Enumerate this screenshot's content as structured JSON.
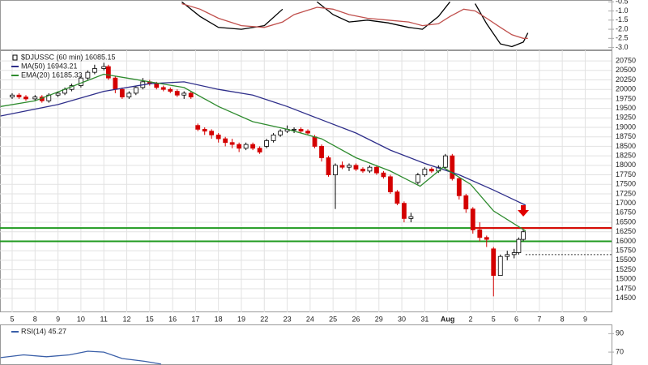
{
  "chart_data": [
    {
      "type": "line",
      "xlim": [
        -0.53,
        26.15
      ],
      "ylim": [
        -3.15,
        -0.4
      ],
      "yticks": [
        -0.5,
        {
          "value": -1,
          "label": "-1.0"
        },
        -1.5,
        {
          "value": -2,
          "label": "-2.0"
        },
        -2.5,
        {
          "value": -3,
          "label": "-3.0"
        }
      ],
      "x": [
        7.4,
        8.2,
        9.0,
        10.0,
        11.0,
        11.8,
        12.3,
        13.3,
        14.0,
        14.7,
        15.5,
        16.4,
        17.3,
        17.9,
        18.6,
        19.1,
        19.7,
        20.2,
        20.7,
        21.3,
        21.8,
        22.3,
        22.5
      ],
      "series": [
        {
          "color": "#000000",
          "values": [
            -0.5,
            -1.3,
            -1.9,
            -2.0,
            -1.8,
            -0.9,
            null,
            -0.5,
            -1.2,
            -1.6,
            -1.5,
            -1.65,
            -1.9,
            -2.0,
            -1.3,
            -0.5,
            null,
            -0.6,
            -1.7,
            -2.8,
            -2.95,
            -2.7,
            -2.2
          ]
        },
        {
          "color": "#c0504d",
          "values": [
            -0.6,
            -0.9,
            -1.4,
            -1.8,
            -1.9,
            -1.6,
            -1.2,
            -0.8,
            -0.9,
            -1.2,
            -1.4,
            -1.5,
            -1.6,
            -1.8,
            -1.7,
            -1.3,
            -0.9,
            -1.0,
            -1.4,
            -1.9,
            -2.3,
            -2.5,
            -2.5
          ]
        }
      ]
    },
    {
      "type": "candlestick",
      "xlim": [
        -0.53,
        26.15
      ],
      "ylim": [
        14130,
        21030
      ],
      "grid": true,
      "legend": "top-left",
      "yticks": [
        14500,
        14750,
        15000,
        15250,
        15500,
        15750,
        16000,
        16250,
        16500,
        16750,
        17000,
        17250,
        17500,
        17750,
        18000,
        18250,
        18500,
        18750,
        19000,
        19250,
        19500,
        19750,
        20000,
        20250,
        20500,
        20750
      ],
      "xticks": [
        {
          "value": 0,
          "label": "5"
        },
        {
          "value": 1,
          "label": "8"
        },
        {
          "value": 2,
          "label": "9"
        },
        {
          "value": 3,
          "label": "10"
        },
        {
          "value": 4,
          "label": "11"
        },
        {
          "value": 5,
          "label": "12"
        },
        {
          "value": 6,
          "label": "15"
        },
        {
          "value": 7,
          "label": "16"
        },
        {
          "value": 8,
          "label": "17"
        },
        {
          "value": 9,
          "label": "18"
        },
        {
          "value": 10,
          "label": "19"
        },
        {
          "value": 11,
          "label": "22"
        },
        {
          "value": 12,
          "label": "23"
        },
        {
          "value": 13,
          "label": "24"
        },
        {
          "value": 14,
          "label": "25"
        },
        {
          "value": 15,
          "label": "26"
        },
        {
          "value": 16,
          "label": "29"
        },
        {
          "value": 17,
          "label": "30"
        },
        {
          "value": 18,
          "label": "31"
        },
        {
          "value": 19,
          "label": "Aug"
        },
        {
          "value": 20,
          "label": "2"
        },
        {
          "value": 21,
          "label": "5"
        },
        {
          "value": 22,
          "label": "6"
        },
        {
          "value": 23,
          "label": "7"
        },
        {
          "value": 24,
          "label": "8"
        },
        {
          "value": 25,
          "label": "9"
        }
      ],
      "candles": {
        "name": "$DJUSSC (60 min) 16085.15",
        "up_color": "#000000",
        "down_color": "#d40000",
        "x": [
          0.0,
          0.3,
          0.6,
          1.0,
          1.3,
          1.6,
          2.0,
          2.3,
          2.6,
          3.0,
          3.3,
          3.6,
          4.0,
          4.2,
          4.5,
          4.8,
          5.1,
          5.4,
          5.7,
          6.0,
          6.3,
          6.6,
          6.9,
          7.2,
          7.5,
          7.8,
          8.1,
          8.4,
          8.7,
          9.0,
          9.3,
          9.6,
          9.9,
          10.2,
          10.5,
          10.8,
          11.1,
          11.4,
          11.7,
          12.0,
          12.3,
          12.6,
          12.9,
          13.2,
          13.5,
          13.8,
          14.1,
          14.4,
          14.7,
          15.0,
          15.3,
          15.6,
          15.9,
          16.2,
          16.5,
          16.8,
          17.1,
          17.4,
          17.7,
          18.0,
          18.3,
          18.6,
          18.9,
          19.2,
          19.5,
          19.8,
          20.1,
          20.4,
          20.7,
          21.0,
          21.3,
          21.6,
          21.9,
          22.1,
          22.3
        ],
        "open": [
          19800,
          19850,
          19800,
          19750,
          19800,
          19700,
          19850,
          19900,
          20000,
          20100,
          20300,
          20450,
          20550,
          20600,
          20300,
          20000,
          19800,
          19900,
          20050,
          20200,
          20150,
          20050,
          20000,
          19950,
          19850,
          19900,
          19050,
          18950,
          18900,
          18800,
          18700,
          18600,
          18550,
          18450,
          18550,
          18450,
          18500,
          18650,
          18800,
          18900,
          18950,
          18950,
          18900,
          18750,
          18500,
          18200,
          17750,
          18000,
          17950,
          18000,
          17900,
          17850,
          17950,
          17800,
          17700,
          17300,
          17000,
          16600,
          17550,
          17750,
          17900,
          17850,
          17950,
          18250,
          17650,
          17200,
          16850,
          16300,
          16100,
          15800,
          15100,
          15600,
          15650,
          15700,
          16050
        ],
        "high": [
          19900,
          19900,
          19850,
          19850,
          19850,
          19900,
          19950,
          20050,
          20150,
          20350,
          20500,
          20650,
          20700,
          20650,
          20350,
          20050,
          19950,
          20100,
          20300,
          20250,
          20200,
          20100,
          20050,
          20000,
          19950,
          19950,
          19100,
          19000,
          18950,
          18850,
          18750,
          18700,
          18600,
          18600,
          18600,
          18500,
          18700,
          18850,
          18950,
          19050,
          19000,
          19000,
          18950,
          18800,
          18550,
          18250,
          18050,
          18100,
          18050,
          18050,
          17950,
          18000,
          18000,
          17850,
          17750,
          17350,
          17050,
          16750,
          17800,
          17950,
          17950,
          18000,
          18300,
          18300,
          17700,
          17250,
          16900,
          16500,
          16150,
          15850,
          15650,
          15750,
          15800,
          16100,
          16300
        ],
        "low": [
          19750,
          19750,
          19700,
          19700,
          19650,
          19650,
          19800,
          19850,
          19950,
          20050,
          20250,
          20400,
          20500,
          20250,
          19900,
          19750,
          19750,
          19850,
          20000,
          20100,
          20000,
          19950,
          19900,
          19800,
          19750,
          19750,
          18900,
          18800,
          18700,
          18600,
          18500,
          18450,
          18350,
          18400,
          18400,
          18300,
          18450,
          18600,
          18750,
          18850,
          18850,
          18850,
          18800,
          18450,
          18100,
          17700,
          16850,
          17900,
          17850,
          17850,
          17800,
          17800,
          17750,
          17650,
          17250,
          16950,
          16500,
          16500,
          17500,
          17700,
          17800,
          17800,
          17900,
          17600,
          17100,
          16750,
          16200,
          16000,
          15850,
          14550,
          15450,
          15500,
          15550,
          15650,
          16000
        ],
        "close": [
          19850,
          19800,
          19750,
          19800,
          19700,
          19850,
          19900,
          20000,
          20100,
          20300,
          20450,
          20550,
          20600,
          20300,
          20000,
          19800,
          19900,
          20050,
          20200,
          20150,
          20050,
          20000,
          19950,
          19850,
          19900,
          19800,
          18950,
          18900,
          18800,
          18700,
          18600,
          18550,
          18450,
          18550,
          18450,
          18350,
          18650,
          18800,
          18900,
          18950,
          18950,
          18900,
          18850,
          18500,
          18200,
          17750,
          18000,
          17950,
          18000,
          17900,
          17850,
          17950,
          17800,
          17700,
          17300,
          17000,
          16600,
          16650,
          17750,
          17900,
          17850,
          17950,
          18250,
          17650,
          17200,
          16850,
          16300,
          16100,
          16050,
          15100,
          15600,
          15650,
          15700,
          16050,
          16250
        ]
      },
      "series": [
        {
          "name": "MA(50) 16943.21",
          "color": "#2e2e8a",
          "x": [
            -0.5,
            2,
            4,
            6,
            7.5,
            9,
            10.5,
            12,
            13.5,
            15,
            16.5,
            18,
            19.5,
            21,
            22.4
          ],
          "values": [
            19300,
            19600,
            19950,
            20150,
            20200,
            20000,
            19850,
            19550,
            19200,
            18850,
            18400,
            18050,
            17750,
            17350,
            16950
          ]
        },
        {
          "name": "EMA(20) 16185.33",
          "color": "#2e8b2e",
          "x": [
            -0.5,
            1,
            2.5,
            4,
            5,
            6,
            7.5,
            9,
            10.5,
            12,
            13.5,
            15,
            16.5,
            17.8,
            18.8,
            20,
            21,
            22.4
          ],
          "values": [
            19550,
            19700,
            20050,
            20400,
            20300,
            20200,
            20050,
            19550,
            19150,
            18950,
            18700,
            18200,
            17850,
            17450,
            17950,
            17500,
            16800,
            16270
          ]
        }
      ],
      "hlines": [
        {
          "value": 16350,
          "color": "#1f9a1f"
        },
        {
          "value": 16000,
          "color": "#1f9a1f"
        },
        {
          "value": 16350,
          "color": "#e00000",
          "from": 20.2
        },
        {
          "value": 15650,
          "color": "#333333",
          "from": 22.4,
          "dash": true
        }
      ],
      "arrows": [
        {
          "x": 22.3,
          "y": 16650,
          "color": "#e00000"
        }
      ]
    },
    {
      "type": "line",
      "xlim": [
        -0.53,
        26.15
      ],
      "ylim": [
        56,
        100
      ],
      "legend": "top-left",
      "yticks": [
        90,
        70
      ],
      "x": [
        -0.5,
        0.5,
        1.5,
        2.5,
        3.3,
        4.0,
        4.8,
        5.8,
        6.5
      ],
      "series": [
        {
          "name": "RSI(14) 45.27",
          "color": "#3a5fa8",
          "values": [
            64,
            67,
            65,
            67,
            71,
            70,
            63,
            60,
            57
          ]
        }
      ]
    }
  ]
}
